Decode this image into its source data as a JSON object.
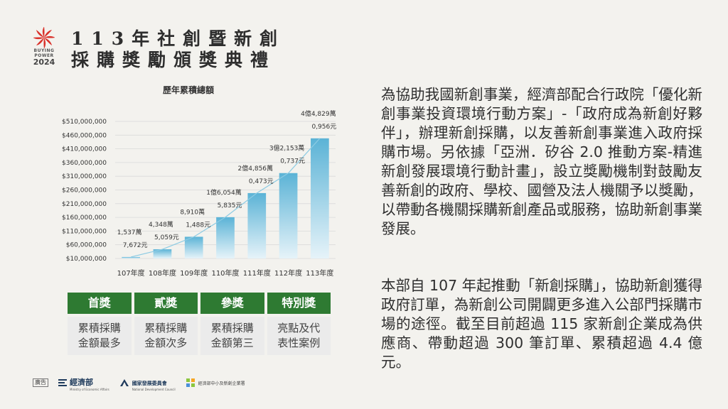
{
  "logo": {
    "line1": "BUYING",
    "line2": "POWER",
    "line3": "2024"
  },
  "title": {
    "line1": "113年社創暨新創",
    "line2": "採購獎勵頒獎典禮"
  },
  "chart_data": {
    "type": "bar",
    "title": "歷年累積總額",
    "categories": [
      "107年度",
      "108年度",
      "109年度",
      "110年度",
      "111年度",
      "112年度",
      "113年度"
    ],
    "values": [
      15377672,
      43485059,
      89101488,
      160545835,
      248560473,
      321530737,
      448290956
    ],
    "data_labels": [
      [
        "1,537萬",
        "7,672元"
      ],
      [
        "4,348萬",
        "5,059元"
      ],
      [
        "8,910萬",
        "1,488元"
      ],
      [
        "1億6,054萬",
        "5,835元"
      ],
      [
        "2億4,856萬",
        "0,473元"
      ],
      [
        "3億2,153萬",
        "0,737元"
      ],
      [
        "4億4,829萬",
        "0,956元"
      ]
    ],
    "y_ticks": [
      "$10,000,000",
      "$60,000,000",
      "$110,000,000",
      "$160,000,000",
      "$210,000,000",
      "$260,000,000",
      "$310,000,000",
      "$360,000,000",
      "$410,000,000",
      "$460,000,000",
      "$510,000,000"
    ],
    "ylim": [
      10000000,
      510000000
    ],
    "grid": true,
    "colors": {
      "bar_top": "#5bb3d6",
      "bar_bottom": "#e6f3f9",
      "trend": "#8ccbe3"
    }
  },
  "awards": [
    {
      "title": "首獎",
      "desc": [
        "累積採購",
        "金額最多"
      ]
    },
    {
      "title": "貳獎",
      "desc": [
        "累積採購",
        "金額次多"
      ]
    },
    {
      "title": "參獎",
      "desc": [
        "累積採購",
        "金額第三"
      ]
    },
    {
      "title": "特別獎",
      "desc": [
        "亮點及代",
        "表性案例"
      ]
    }
  ],
  "paragraphs": [
    "為協助我國新創事業，經濟部配合行政院「優化新創事業投資環境行動方案」-「政府成為新創好夥伴」，辦理新創採購，以友善新創事業進入政府採購市場。另依據「亞洲．矽谷 2.0 推動方案-精進新創發展環境行動計畫」，設立獎勵機制對鼓勵友善新創的政府、學校、國營及法人機關予以獎勵，以帶動各機關採購新創產品或服務，協助新創事業發展。",
    "本部自 107 年起推動「新創採購」，協助新創獲得政府訂單，為新創公司開闢更多進入公部門採購市場的途徑。截至目前超過 115 家新創企業成為供應商、帶動超過 300 筆訂單、累積超過 4.4 億元。"
  ],
  "footer": {
    "ad": "廣告",
    "org1": "經濟部",
    "org1_sub": "Ministry of Economic Affairs",
    "org2": "國家發展委員會",
    "org2_sub": "National Development Council",
    "org3": "經濟部中小及新創企業署"
  },
  "colors": {
    "accent_green": "#2e7a32",
    "logo_red": "#d9322b"
  }
}
